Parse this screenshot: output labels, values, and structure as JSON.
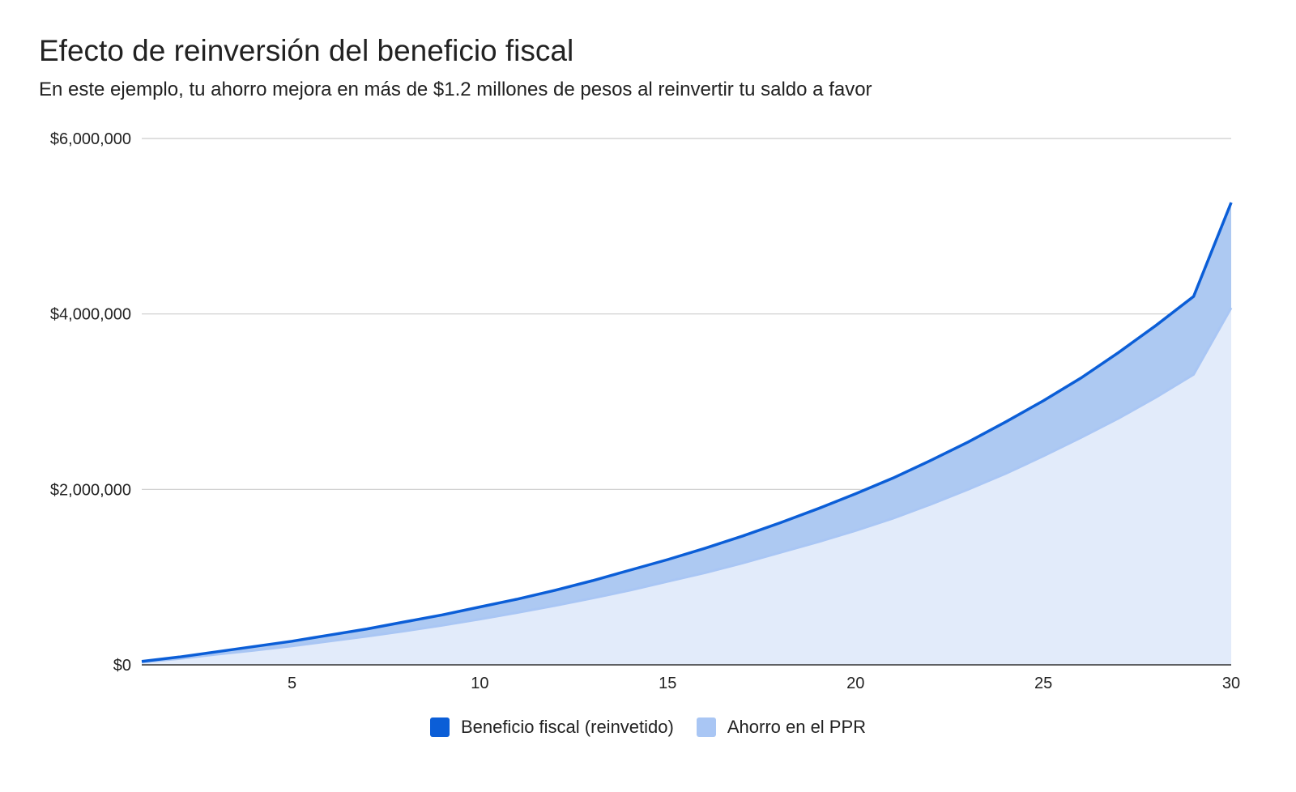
{
  "chart_data": {
    "type": "area",
    "title": "Efecto de reinversión del beneficio fiscal",
    "subtitle": "En este ejemplo, tu ahorro mejora en más de $1.2 millones de pesos al reinvertir tu saldo a favor",
    "x": [
      1,
      2,
      3,
      4,
      5,
      6,
      7,
      8,
      9,
      10,
      11,
      12,
      13,
      14,
      15,
      16,
      17,
      18,
      19,
      20,
      21,
      22,
      23,
      24,
      25,
      26,
      27,
      28,
      29,
      30
    ],
    "series": [
      {
        "name": "Beneficio fiscal (reinvetido)",
        "color": "#0b5ed7",
        "values": [
          40000,
          90000,
          150000,
          210000,
          270000,
          340000,
          410000,
          490000,
          570000,
          660000,
          750000,
          850000,
          960000,
          1080000,
          1200000,
          1330000,
          1470000,
          1620000,
          1780000,
          1950000,
          2130000,
          2330000,
          2540000,
          2770000,
          3010000,
          3270000,
          3560000,
          3870000,
          4200000,
          5270000
        ]
      },
      {
        "name": "Ahorro en el PPR",
        "color": "#a9c6f4",
        "values": [
          30000,
          70000,
          120000,
          165000,
          215000,
          270000,
          325000,
          385000,
          450000,
          520000,
          595000,
          675000,
          760000,
          850000,
          950000,
          1050000,
          1160000,
          1280000,
          1400000,
          1530000,
          1670000,
          1830000,
          2000000,
          2180000,
          2380000,
          2590000,
          2810000,
          3050000,
          3310000,
          4070000
        ]
      }
    ],
    "ylim": [
      0,
      6000000
    ],
    "yticks": [
      "$0",
      "$2,000,000",
      "$4,000,000",
      "$6,000,000"
    ],
    "ytick_values": [
      0,
      2000000,
      4000000,
      6000000
    ],
    "xticks": [
      5,
      10,
      15,
      20,
      25,
      30
    ],
    "xlim": [
      1,
      30
    ],
    "grid": true,
    "legend_position": "bottom"
  },
  "colors": {
    "fiscal_line": "#0b5ed7",
    "fiscal_fill": "#adc9f2",
    "ppr_line": "#a9c6f4",
    "ppr_fill": "#e2ebfa",
    "grid": "#cccccc",
    "axis": "#333333"
  }
}
